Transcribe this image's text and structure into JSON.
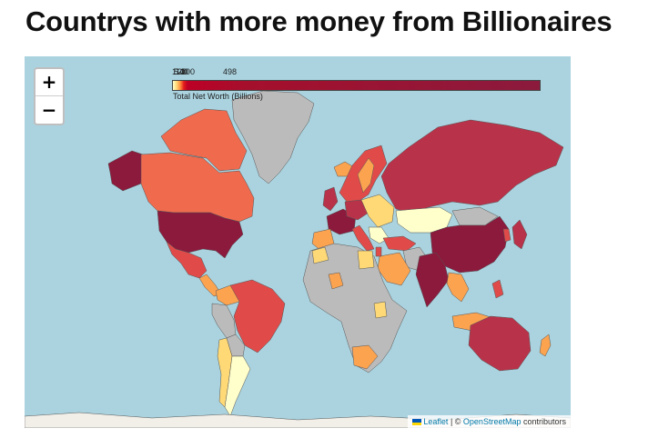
{
  "page": {
    "title": "Countrys with more money from Billionaires"
  },
  "map": {
    "zoom_in_label": "+",
    "zoom_out_label": "−",
    "legend": {
      "ticks": [
        "1",
        "5",
        "10",
        "20",
        "40",
        "100",
        "498"
      ],
      "caption": "Total Net Worth (Billions)",
      "colors": [
        "#ffffcc",
        "#fed976",
        "#fd8d3c",
        "#e31a1c",
        "#bd0026",
        "#8b1a3d"
      ]
    },
    "attribution": {
      "leaflet": "Leaflet",
      "separator": " | © ",
      "osm": "OpenStreetMap",
      "suffix": " contributors"
    },
    "colors": {
      "ocean": "#aad3df",
      "no_data": "#bbbbbb",
      "land_base": "#f2efe9",
      "highest": "#8b1a3d",
      "high": "#b8334a",
      "mid_high": "#e04b4a",
      "mid": "#f06a4e",
      "low_mid": "#fca350",
      "low": "#fed976",
      "lowest": "#ffffcc"
    }
  }
}
